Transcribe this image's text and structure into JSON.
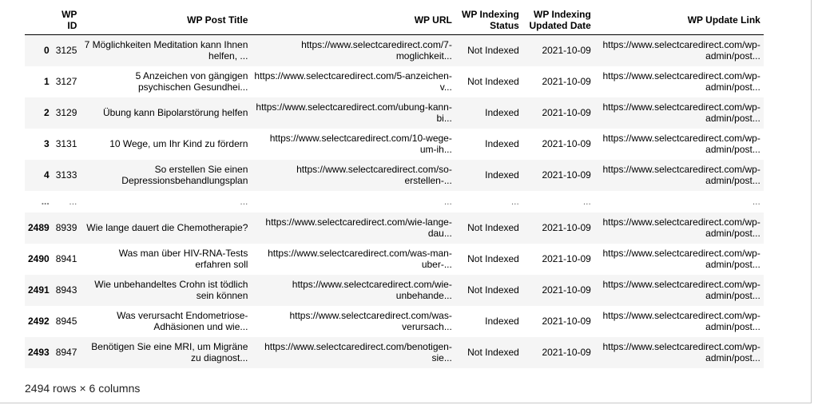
{
  "table": {
    "columns": [
      "",
      "WP ID",
      "WP Post Title",
      "WP URL",
      "WP Indexing Status",
      "WP Indexing Updated Date",
      "WP Update Link"
    ],
    "header_lines": [
      [
        ""
      ],
      [
        "WP",
        "ID"
      ],
      [
        "WP Post Title"
      ],
      [
        "WP URL"
      ],
      [
        "WP Indexing",
        "Status"
      ],
      [
        "WP Indexing",
        "Updated Date"
      ],
      [
        "WP Update Link"
      ]
    ],
    "rows": [
      {
        "index": "0",
        "wp_id": "3125",
        "title": [
          "7 Möglichkeiten Meditation kann Ihnen",
          "helfen, ..."
        ],
        "url": [
          "https://www.selectcaredirect.com/7-",
          "moglichkeit..."
        ],
        "status": "Not Indexed",
        "date": "2021-10-09",
        "link": [
          "https://www.selectcaredirect.com/wp-",
          "admin/post..."
        ]
      },
      {
        "index": "1",
        "wp_id": "3127",
        "title": [
          "5 Anzeichen von gängigen",
          "psychischen Gesundhei..."
        ],
        "url": [
          "https://www.selectcaredirect.com/5-anzeichen-",
          "v..."
        ],
        "status": "Not Indexed",
        "date": "2021-10-09",
        "link": [
          "https://www.selectcaredirect.com/wp-",
          "admin/post..."
        ]
      },
      {
        "index": "2",
        "wp_id": "3129",
        "title": [
          "Übung kann Bipolarstörung helfen"
        ],
        "url": [
          "https://www.selectcaredirect.com/ubung-kann-",
          "bi..."
        ],
        "status": "Indexed",
        "date": "2021-10-09",
        "link": [
          "https://www.selectcaredirect.com/wp-",
          "admin/post..."
        ]
      },
      {
        "index": "3",
        "wp_id": "3131",
        "title": [
          "10 Wege, um Ihr Kind zu fördern"
        ],
        "url": [
          "https://www.selectcaredirect.com/10-wege-",
          "um-ih..."
        ],
        "status": "Indexed",
        "date": "2021-10-09",
        "link": [
          "https://www.selectcaredirect.com/wp-",
          "admin/post..."
        ]
      },
      {
        "index": "4",
        "wp_id": "3133",
        "title": [
          "So erstellen Sie einen",
          "Depressionsbehandlungsplan"
        ],
        "url": [
          "https://www.selectcaredirect.com/so-",
          "erstellen-..."
        ],
        "status": "Indexed",
        "date": "2021-10-09",
        "link": [
          "https://www.selectcaredirect.com/wp-",
          "admin/post..."
        ]
      },
      {
        "index": "...",
        "wp_id": "...",
        "title": [
          "..."
        ],
        "url": [
          "..."
        ],
        "status": "...",
        "date": "...",
        "link": [
          "..."
        ],
        "ellipsis": true
      },
      {
        "index": "2489",
        "wp_id": "8939",
        "title": [
          "Wie lange dauert die Chemotherapie?"
        ],
        "url": [
          "https://www.selectcaredirect.com/wie-lange-",
          "dau..."
        ],
        "status": "Not Indexed",
        "date": "2021-10-09",
        "link": [
          "https://www.selectcaredirect.com/wp-",
          "admin/post..."
        ]
      },
      {
        "index": "2490",
        "wp_id": "8941",
        "title": [
          "Was man über HIV-RNA-Tests",
          "erfahren soll"
        ],
        "url": [
          "https://www.selectcaredirect.com/was-man-",
          "uber-..."
        ],
        "status": "Not Indexed",
        "date": "2021-10-09",
        "link": [
          "https://www.selectcaredirect.com/wp-",
          "admin/post..."
        ]
      },
      {
        "index": "2491",
        "wp_id": "8943",
        "title": [
          "Wie unbehandeltes Crohn ist tödlich",
          "sein können"
        ],
        "url": [
          "https://www.selectcaredirect.com/wie-",
          "unbehande..."
        ],
        "status": "Not Indexed",
        "date": "2021-10-09",
        "link": [
          "https://www.selectcaredirect.com/wp-",
          "admin/post..."
        ]
      },
      {
        "index": "2492",
        "wp_id": "8945",
        "title": [
          "Was verursacht Endometriose-",
          "Adhäsionen und wie..."
        ],
        "url": [
          "https://www.selectcaredirect.com/was-",
          "verursach..."
        ],
        "status": "Indexed",
        "date": "2021-10-09",
        "link": [
          "https://www.selectcaredirect.com/wp-",
          "admin/post..."
        ]
      },
      {
        "index": "2493",
        "wp_id": "8947",
        "title": [
          "Benötigen Sie eine MRI, um Migräne",
          "zu diagnost..."
        ],
        "url": [
          "https://www.selectcaredirect.com/benotigen-",
          "sie..."
        ],
        "status": "Not Indexed",
        "date": "2021-10-09",
        "link": [
          "https://www.selectcaredirect.com/wp-",
          "admin/post..."
        ]
      }
    ],
    "shape_note": "2494 rows × 6 columns"
  },
  "colors": {
    "stripe": "#f5f5f5",
    "header_rule": "#000000",
    "muted": "#6b6b6b"
  }
}
